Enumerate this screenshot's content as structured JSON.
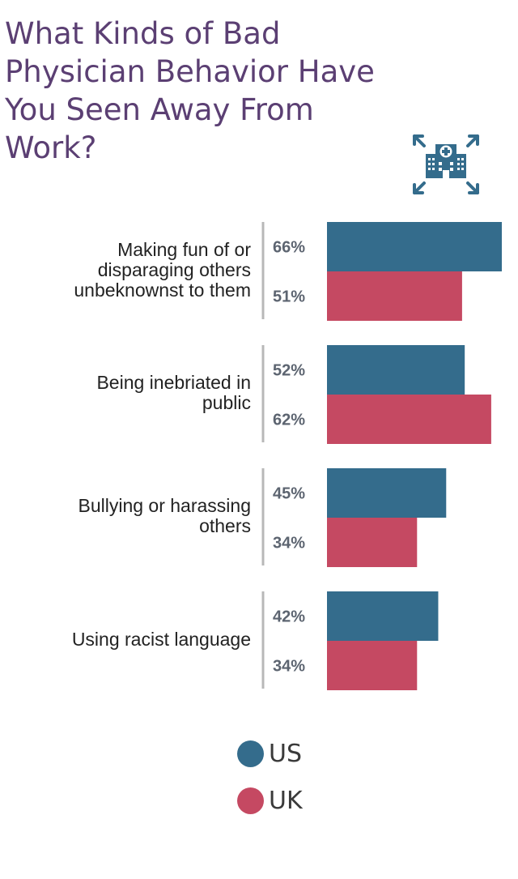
{
  "title": "What Kinds of Bad\nPhysician Behavior Have\nYou Seen Away From\nWork?",
  "icon": "hospital-expand-icon",
  "colors": {
    "US": "#346c8c",
    "UK": "#c54962",
    "title": "#5b3f73",
    "divider": "#b8b8b8",
    "pct": "#5c6470"
  },
  "chart_data": {
    "type": "bar",
    "orientation": "horizontal",
    "title": "What Kinds of Bad Physician Behavior Have You Seen Away From Work?",
    "categories": [
      "Making fun of or\ndisparaging others\nunbeknownst to them",
      "Being inebriated in\npublic",
      "Bullying or harassing\nothers",
      "Using racist language"
    ],
    "series": [
      {
        "name": "US",
        "values": [
          66,
          52,
          45,
          42
        ],
        "labels": [
          "66%",
          "52%",
          "45%",
          "42%"
        ]
      },
      {
        "name": "UK",
        "values": [
          51,
          62,
          34,
          34
        ],
        "labels": [
          "51%",
          "62%",
          "34%",
          "34%"
        ]
      }
    ],
    "unit": "%",
    "legend_position": "bottom"
  },
  "legend": [
    {
      "label": "US"
    },
    {
      "label": "UK"
    }
  ]
}
